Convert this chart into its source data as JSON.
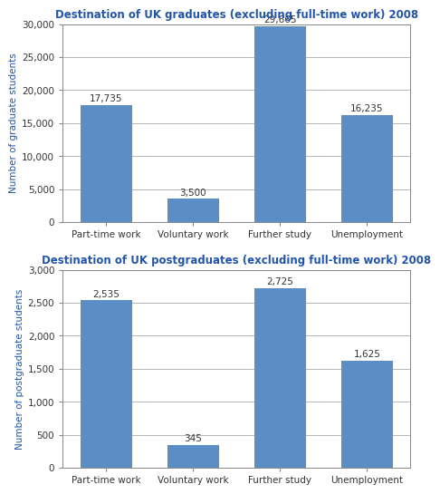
{
  "chart1": {
    "title": "Destination of UK graduates (excluding full-time work) 2008",
    "categories": [
      "Part-time work",
      "Voluntary work",
      "Further study",
      "Unemployment"
    ],
    "values": [
      17735,
      3500,
      29665,
      16235
    ],
    "labels": [
      "17,735",
      "3,500",
      "29,665",
      "16,235"
    ],
    "ylabel": "Number of graduate students",
    "ylim": [
      0,
      30000
    ],
    "yticks": [
      0,
      5000,
      10000,
      15000,
      20000,
      25000,
      30000
    ],
    "ytick_labels": [
      "0",
      "5,000",
      "10,000",
      "15,000",
      "20,000",
      "25,000",
      "30,000"
    ]
  },
  "chart2": {
    "title": "Destination of UK postgraduates (excluding full-time work) 2008",
    "categories": [
      "Part-time work",
      "Voluntary work",
      "Further study",
      "Unemployment"
    ],
    "values": [
      2535,
      345,
      2725,
      1625
    ],
    "labels": [
      "2,535",
      "345",
      "2,725",
      "1,625"
    ],
    "ylabel": "Number of postgraduate students",
    "ylim": [
      0,
      3000
    ],
    "yticks": [
      0,
      500,
      1000,
      1500,
      2000,
      2500,
      3000
    ],
    "ytick_labels": [
      "0",
      "500",
      "1,000",
      "1,500",
      "2,000",
      "2,500",
      "3,000"
    ]
  },
  "bar_color": "#5b8ec4",
  "title_color": "#2255aa",
  "ylabel_color": "#2255aa",
  "title_fontsize": 8.5,
  "label_fontsize": 7.5,
  "ylabel_fontsize": 7.5,
  "xtick_fontsize": 7.5,
  "ytick_fontsize": 7.5,
  "bg_color": "#ffffff"
}
